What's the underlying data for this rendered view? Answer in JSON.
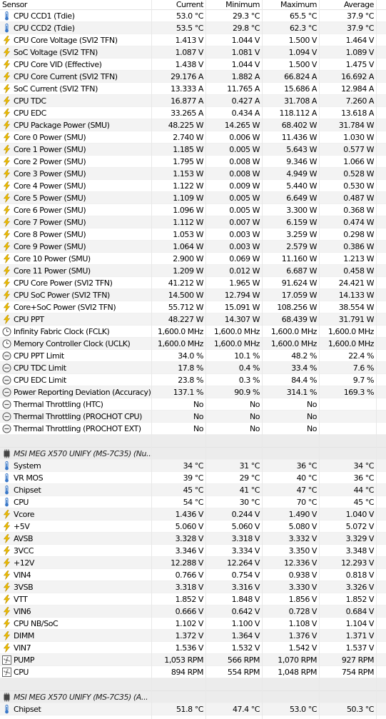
{
  "columns": {
    "sensor": "Sensor",
    "current": "Current",
    "minimum": "Minimum",
    "maximum": "Maximum",
    "average": "Average"
  },
  "groups": [
    {
      "title": null,
      "rows": [
        {
          "icon": "thermometer-icon",
          "name": "CPU CCD1 (Tdie)",
          "cur": "53.0 °C",
          "min": "29.3 °C",
          "max": "65.5 °C",
          "avg": "37.9 °C"
        },
        {
          "icon": "thermometer-icon",
          "name": "CPU CCD2 (Tdie)",
          "cur": "53.5 °C",
          "min": "29.8 °C",
          "max": "62.3 °C",
          "avg": "37.9 °C"
        },
        {
          "icon": "lightning-icon",
          "name": "CPU Core Voltage (SVI2 TFN)",
          "cur": "1.413 V",
          "min": "1.044 V",
          "max": "1.500 V",
          "avg": "1.464 V"
        },
        {
          "icon": "lightning-icon",
          "name": "SoC Voltage (SVI2 TFN)",
          "cur": "1.087 V",
          "min": "1.081 V",
          "max": "1.094 V",
          "avg": "1.089 V"
        },
        {
          "icon": "lightning-icon",
          "name": "CPU Core VID (Effective)",
          "cur": "1.438 V",
          "min": "1.044 V",
          "max": "1.500 V",
          "avg": "1.475 V"
        },
        {
          "icon": "lightning-icon",
          "name": "CPU Core Current (SVI2 TFN)",
          "cur": "29.176 A",
          "min": "1.882 A",
          "max": "66.824 A",
          "avg": "16.692 A"
        },
        {
          "icon": "lightning-icon",
          "name": "SoC Current (SVI2 TFN)",
          "cur": "13.333 A",
          "min": "11.765 A",
          "max": "15.686 A",
          "avg": "12.984 A"
        },
        {
          "icon": "lightning-icon",
          "name": "CPU TDC",
          "cur": "16.877 A",
          "min": "0.427 A",
          "max": "31.708 A",
          "avg": "7.260 A"
        },
        {
          "icon": "lightning-icon",
          "name": "CPU EDC",
          "cur": "33.265 A",
          "min": "0.434 A",
          "max": "118.112 A",
          "avg": "13.618 A"
        },
        {
          "icon": "lightning-icon",
          "name": "CPU Package Power (SMU)",
          "cur": "48.225 W",
          "min": "14.265 W",
          "max": "68.402 W",
          "avg": "31.784 W"
        },
        {
          "icon": "lightning-icon",
          "name": "Core 0 Power (SMU)",
          "cur": "2.740 W",
          "min": "0.006 W",
          "max": "11.436 W",
          "avg": "1.030 W"
        },
        {
          "icon": "lightning-icon",
          "name": "Core 1 Power (SMU)",
          "cur": "1.185 W",
          "min": "0.005 W",
          "max": "5.643 W",
          "avg": "0.577 W"
        },
        {
          "icon": "lightning-icon",
          "name": "Core 2 Power (SMU)",
          "cur": "1.795 W",
          "min": "0.008 W",
          "max": "9.346 W",
          "avg": "1.066 W"
        },
        {
          "icon": "lightning-icon",
          "name": "Core 3 Power (SMU)",
          "cur": "1.153 W",
          "min": "0.008 W",
          "max": "4.949 W",
          "avg": "0.528 W"
        },
        {
          "icon": "lightning-icon",
          "name": "Core 4 Power (SMU)",
          "cur": "1.122 W",
          "min": "0.009 W",
          "max": "5.440 W",
          "avg": "0.530 W"
        },
        {
          "icon": "lightning-icon",
          "name": "Core 5 Power (SMU)",
          "cur": "1.109 W",
          "min": "0.005 W",
          "max": "6.649 W",
          "avg": "0.487 W"
        },
        {
          "icon": "lightning-icon",
          "name": "Core 6 Power (SMU)",
          "cur": "1.096 W",
          "min": "0.005 W",
          "max": "3.300 W",
          "avg": "0.368 W"
        },
        {
          "icon": "lightning-icon",
          "name": "Core 7 Power (SMU)",
          "cur": "1.112 W",
          "min": "0.007 W",
          "max": "6.159 W",
          "avg": "0.474 W"
        },
        {
          "icon": "lightning-icon",
          "name": "Core 8 Power (SMU)",
          "cur": "1.053 W",
          "min": "0.003 W",
          "max": "3.259 W",
          "avg": "0.298 W"
        },
        {
          "icon": "lightning-icon",
          "name": "Core 9 Power (SMU)",
          "cur": "1.064 W",
          "min": "0.003 W",
          "max": "2.579 W",
          "avg": "0.386 W"
        },
        {
          "icon": "lightning-icon",
          "name": "Core 10 Power (SMU)",
          "cur": "2.900 W",
          "min": "0.069 W",
          "max": "11.160 W",
          "avg": "1.213 W"
        },
        {
          "icon": "lightning-icon",
          "name": "Core 11 Power (SMU)",
          "cur": "1.209 W",
          "min": "0.012 W",
          "max": "6.687 W",
          "avg": "0.458 W"
        },
        {
          "icon": "lightning-icon",
          "name": "CPU Core Power (SVI2 TFN)",
          "cur": "41.212 W",
          "min": "1.965 W",
          "max": "91.624 W",
          "avg": "24.421 W"
        },
        {
          "icon": "lightning-icon",
          "name": "CPU SoC Power (SVI2 TFN)",
          "cur": "14.500 W",
          "min": "12.794 W",
          "max": "17.059 W",
          "avg": "14.133 W"
        },
        {
          "icon": "lightning-icon",
          "name": "Core+SoC Power (SVI2 TFN)",
          "cur": "55.712 W",
          "min": "15.091 W",
          "max": "108.256 W",
          "avg": "38.554 W"
        },
        {
          "icon": "lightning-icon",
          "name": "CPU PPT",
          "cur": "48.227 W",
          "min": "14.307 W",
          "max": "68.439 W",
          "avg": "31.791 W"
        },
        {
          "icon": "clock-icon",
          "name": "Infinity Fabric Clock (FCLK)",
          "cur": "1,600.0 MHz",
          "min": "1,600.0 MHz",
          "max": "1,600.0 MHz",
          "avg": "1,600.0 MHz"
        },
        {
          "icon": "clock-icon",
          "name": "Memory Controller Clock (UCLK)",
          "cur": "1,600.0 MHz",
          "min": "1,600.0 MHz",
          "max": "1,600.0 MHz",
          "avg": "1,600.0 MHz"
        },
        {
          "icon": "gauge-icon",
          "name": "CPU PPT Limit",
          "cur": "34.0 %",
          "min": "10.1 %",
          "max": "48.2 %",
          "avg": "22.4 %"
        },
        {
          "icon": "gauge-icon",
          "name": "CPU TDC Limit",
          "cur": "17.8 %",
          "min": "0.4 %",
          "max": "33.4 %",
          "avg": "7.6 %"
        },
        {
          "icon": "gauge-icon",
          "name": "CPU EDC Limit",
          "cur": "23.8 %",
          "min": "0.3 %",
          "max": "84.4 %",
          "avg": "9.7 %"
        },
        {
          "icon": "gauge-icon",
          "name": "Power Reporting Deviation (Accuracy)",
          "cur": "137.1 %",
          "min": "90.9 %",
          "max": "314.1 %",
          "avg": "169.3 %"
        },
        {
          "icon": "gauge-icon",
          "name": "Thermal Throttling (HTC)",
          "cur": "No",
          "min": "No",
          "max": "No",
          "avg": ""
        },
        {
          "icon": "gauge-icon",
          "name": "Thermal Throttling (PROCHOT CPU)",
          "cur": "No",
          "min": "No",
          "max": "No",
          "avg": ""
        },
        {
          "icon": "gauge-icon",
          "name": "Thermal Throttling (PROCHOT EXT)",
          "cur": "No",
          "min": "No",
          "max": "No",
          "avg": ""
        }
      ]
    },
    {
      "title": "MSI MEG X570 UNIFY (MS-7C35) (Nu...",
      "rows": [
        {
          "icon": "thermometer-icon",
          "name": "System",
          "cur": "34 °C",
          "min": "31 °C",
          "max": "36 °C",
          "avg": "34 °C"
        },
        {
          "icon": "thermometer-icon",
          "name": "VR MOS",
          "cur": "39 °C",
          "min": "29 °C",
          "max": "40 °C",
          "avg": "36 °C"
        },
        {
          "icon": "thermometer-icon",
          "name": "Chipset",
          "cur": "45 °C",
          "min": "41 °C",
          "max": "47 °C",
          "avg": "44 °C"
        },
        {
          "icon": "thermometer-icon",
          "name": "CPU",
          "cur": "54 °C",
          "min": "30 °C",
          "max": "70 °C",
          "avg": "45 °C"
        },
        {
          "icon": "lightning-icon",
          "name": "Vcore",
          "cur": "1.436 V",
          "min": "0.244 V",
          "max": "1.490 V",
          "avg": "1.040 V"
        },
        {
          "icon": "lightning-icon",
          "name": "+5V",
          "cur": "5.060 V",
          "min": "5.060 V",
          "max": "5.080 V",
          "avg": "5.072 V"
        },
        {
          "icon": "lightning-icon",
          "name": "AVSB",
          "cur": "3.328 V",
          "min": "3.318 V",
          "max": "3.332 V",
          "avg": "3.329 V"
        },
        {
          "icon": "lightning-icon",
          "name": "3VCC",
          "cur": "3.346 V",
          "min": "3.334 V",
          "max": "3.350 V",
          "avg": "3.348 V"
        },
        {
          "icon": "lightning-icon",
          "name": "+12V",
          "cur": "12.288 V",
          "min": "12.264 V",
          "max": "12.336 V",
          "avg": "12.293 V"
        },
        {
          "icon": "lightning-icon",
          "name": "VIN4",
          "cur": "0.766 V",
          "min": "0.754 V",
          "max": "0.938 V",
          "avg": "0.818 V"
        },
        {
          "icon": "lightning-icon",
          "name": "3VSB",
          "cur": "3.318 V",
          "min": "3.316 V",
          "max": "3.330 V",
          "avg": "3.326 V"
        },
        {
          "icon": "lightning-icon",
          "name": "VTT",
          "cur": "1.852 V",
          "min": "1.848 V",
          "max": "1.856 V",
          "avg": "1.852 V"
        },
        {
          "icon": "lightning-icon",
          "name": "VIN6",
          "cur": "0.666 V",
          "min": "0.642 V",
          "max": "0.728 V",
          "avg": "0.684 V"
        },
        {
          "icon": "lightning-icon",
          "name": "CPU NB/SoC",
          "cur": "1.102 V",
          "min": "1.100 V",
          "max": "1.108 V",
          "avg": "1.104 V"
        },
        {
          "icon": "lightning-icon",
          "name": "DIMM",
          "cur": "1.372 V",
          "min": "1.364 V",
          "max": "1.376 V",
          "avg": "1.371 V"
        },
        {
          "icon": "lightning-icon",
          "name": "VIN7",
          "cur": "1.536 V",
          "min": "1.532 V",
          "max": "1.542 V",
          "avg": "1.537 V"
        },
        {
          "icon": "fan-icon",
          "name": "PUMP",
          "cur": "1,053 RPM",
          "min": "566 RPM",
          "max": "1,070 RPM",
          "avg": "927 RPM"
        },
        {
          "icon": "fan-icon",
          "name": "CPU",
          "cur": "894 RPM",
          "min": "554 RPM",
          "max": "1,048 RPM",
          "avg": "754 RPM"
        }
      ]
    },
    {
      "title": "MSI MEG X570 UNIFY (MS-7C35) (A...",
      "rows": [
        {
          "icon": "thermometer-icon",
          "name": "Chipset",
          "cur": "51.8 °C",
          "min": "47.4 °C",
          "max": "53.0 °C",
          "avg": "50.3 °C"
        }
      ]
    }
  ],
  "colors": {
    "accent": "#e8a300",
    "thermo": "#3a78c8",
    "selection": "#f3f3f3"
  }
}
